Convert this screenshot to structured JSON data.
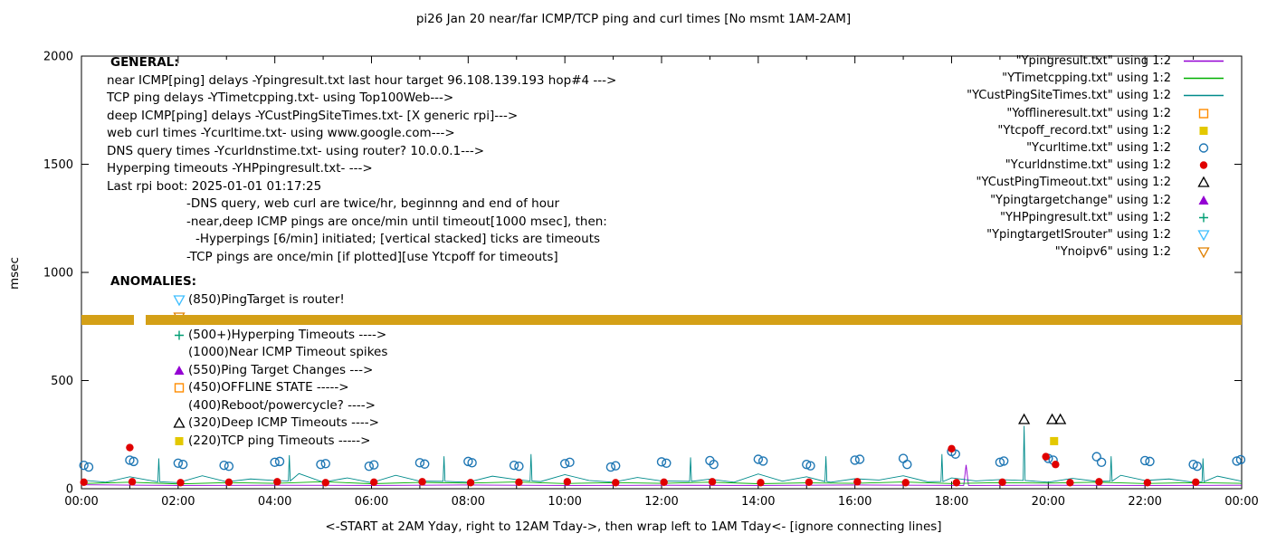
{
  "title": "pi26 Jan 20  near/far ICMP/TCP ping and curl times [No msmt 1AM-2AM]",
  "y_axis_label": "msec",
  "x_axis_label": "<-START at 2AM Yday, right to 12AM Tday->, then wrap left to 1AM Tday<- [ignore connecting lines]",
  "legend": {
    "items": [
      {
        "label": "\"Ypingresult.txt\" using 1:2",
        "marker": "line",
        "color": "#9400d3"
      },
      {
        "label": "\"YTimetcpping.txt\" using 1:2",
        "marker": "line",
        "color": "#00b000"
      },
      {
        "label": "\"YCustPingSiteTimes.txt\" using 1:2",
        "marker": "line",
        "color": "#008b8b"
      },
      {
        "label": "\"Yofflineresult.txt\" using 1:2",
        "marker": "square-open",
        "color": "#ff8c00"
      },
      {
        "label": "\"Ytcpoff_record.txt\" using 1:2",
        "marker": "square-filled",
        "color": "#e3c800"
      },
      {
        "label": "\"Ycurltime.txt\" using 1:2",
        "marker": "circle-open",
        "color": "#1f77b4"
      },
      {
        "label": "\"Ycurldnstime.txt\" using 1:2",
        "marker": "circle-filled",
        "color": "#e00000"
      },
      {
        "label": "\"YCustPingTimeout.txt\" using 1:2",
        "marker": "triangle-up-open",
        "color": "#000000"
      },
      {
        "label": "\"Ypingtargetchange\" using 1:2",
        "marker": "triangle-up-filled",
        "color": "#9400d3"
      },
      {
        "label": "\"YHPpingresult.txt\" using 1:2",
        "marker": "plus",
        "color": "#009e73"
      },
      {
        "label": "\"YpingtargetISrouter\" using 1:2",
        "marker": "triangle-down-open",
        "color": "#3fbfff"
      },
      {
        "label": "\"Ynoipv6\" using 1:2",
        "marker": "triangle-down-open",
        "color": "#e08000"
      }
    ]
  },
  "annotations": {
    "general_heading": "GENERAL:",
    "general_lines": [
      {
        "text": "near ICMP[ping] delays -Ypingresult.txt last hour target 96.108.139.193 hop#4 --->"
      },
      {
        "text": "TCP ping delays -YTimetcpping.txt- using Top100Web--->"
      },
      {
        "text": "deep ICMP[ping] delays -YCustPingSiteTimes.txt- [X generic rpi]--->"
      },
      {
        "text": "web curl times -Ycurltime.txt- using www.google.com--->"
      },
      {
        "text": "DNS query times -Ycurldnstime.txt- using router? 10.0.0.1--->"
      },
      {
        "text": "Hyperping timeouts -YHPpingresult.txt- --->"
      },
      {
        "text": "Last rpi boot: 2025-01-01 01:17:25"
      },
      {
        "text": "-DNS query, web curl are twice/hr, beginnng and end of hour"
      },
      {
        "text": "-near,deep ICMP pings are once/min until timeout[1000 msec], then:"
      },
      {
        "text": "-Hyperpings [6/min] initiated; [vertical stacked] ticks are timeouts"
      },
      {
        "text": "-TCP pings are once/min [if plotted][use Ytcpoff for timeouts]"
      }
    ],
    "anomalies_heading": "ANOMALIES:",
    "anomaly_lines": [
      {
        "marker": "triangle-down-open",
        "color": "#3fbfff",
        "text": "(850)PingTarget is router!"
      },
      {
        "marker": "triangle-down-open",
        "color": "#e08000",
        "text": ""
      },
      {
        "marker": "plus",
        "color": "#009e73",
        "text": "(500+)Hyperping Timeouts ---->"
      },
      {
        "marker": "none",
        "color": "",
        "text": "(1000)Near ICMP Timeout spikes"
      },
      {
        "marker": "triangle-up-filled",
        "color": "#9400d3",
        "text": "(550)Ping Target Changes --->"
      },
      {
        "marker": "square-open",
        "color": "#ff8c00",
        "text": "(450)OFFLINE STATE ----->"
      },
      {
        "marker": "none",
        "color": "",
        "text": "(400)Reboot/powercycle? ---->"
      },
      {
        "marker": "triangle-up-open",
        "color": "#000000",
        "text": "(320)Deep ICMP Timeouts ---->"
      },
      {
        "marker": "square-filled",
        "color": "#e3c800",
        "text": "(220)TCP ping Timeouts ----->"
      }
    ]
  },
  "chart_data": {
    "type": "scatter",
    "title": "pi26 Jan 20  near/far ICMP/TCP ping and curl times [No msmt 1AM-2AM]",
    "xlabel": "<-START at 2AM Yday, right to 12AM Tday->, then wrap left to 1AM Tday<- [ignore connecting lines]",
    "ylabel": "msec",
    "xlim": [
      0,
      24
    ],
    "ylim": [
      0,
      2000
    ],
    "x_tick_labels": [
      "00:00",
      "02:00",
      "04:00",
      "06:00",
      "08:00",
      "10:00",
      "12:00",
      "14:00",
      "16:00",
      "18:00",
      "20:00",
      "22:00",
      "00:00"
    ],
    "y_ticks": [
      0,
      500,
      1000,
      1500,
      2000
    ],
    "grid": false,
    "legend_position": "top-right",
    "band": {
      "name": "Ynoipv6 dense markers band",
      "y_range": [
        758,
        802
      ],
      "x_segments": [
        [
          0,
          1.08
        ],
        [
          1.33,
          24
        ]
      ],
      "color": "#d4a017"
    },
    "series": [
      {
        "name": "Ypingresult.txt (near ICMP ping)",
        "type": "line",
        "color": "#9400d3",
        "points": [
          [
            0,
            18
          ],
          [
            2,
            15
          ],
          [
            4,
            16
          ],
          [
            6,
            15
          ],
          [
            8,
            17
          ],
          [
            10,
            15
          ],
          [
            12,
            16
          ],
          [
            14,
            15
          ],
          [
            16,
            17
          ],
          [
            18.25,
            15
          ],
          [
            18.3,
            110
          ],
          [
            18.35,
            15
          ],
          [
            20,
            16
          ],
          [
            22,
            15
          ],
          [
            24,
            16
          ]
        ]
      },
      {
        "name": "YTimetcpping.txt (TCP ping)",
        "type": "line",
        "color": "#00b000",
        "points": [
          [
            0,
            24
          ],
          [
            1,
            30
          ],
          [
            2,
            22
          ],
          [
            3,
            28
          ],
          [
            4,
            25
          ],
          [
            5,
            32
          ],
          [
            6,
            23
          ],
          [
            7,
            29
          ],
          [
            8,
            26
          ],
          [
            9,
            31
          ],
          [
            10,
            24
          ],
          [
            11,
            28
          ],
          [
            12,
            25
          ],
          [
            13,
            30
          ],
          [
            14,
            23
          ],
          [
            15,
            27
          ],
          [
            16,
            25
          ],
          [
            17,
            31
          ],
          [
            18,
            24
          ],
          [
            19,
            28
          ],
          [
            20,
            26
          ],
          [
            21,
            30
          ],
          [
            22,
            24
          ],
          [
            23,
            28
          ],
          [
            24,
            25
          ]
        ]
      },
      {
        "name": "YCustPingSiteTimes.txt (deep ICMP ping)",
        "type": "line",
        "color": "#008b8b",
        "points": [
          [
            0,
            40
          ],
          [
            0.5,
            30
          ],
          [
            1,
            55
          ],
          [
            1.5,
            35
          ],
          [
            1.58,
            32
          ],
          [
            1.6,
            140
          ],
          [
            1.62,
            32
          ],
          [
            2,
            28
          ],
          [
            2.5,
            60
          ],
          [
            3,
            32
          ],
          [
            3.5,
            45
          ],
          [
            4,
            38
          ],
          [
            4.28,
            36
          ],
          [
            4.3,
            155
          ],
          [
            4.32,
            36
          ],
          [
            4.5,
            70
          ],
          [
            5,
            30
          ],
          [
            5.5,
            50
          ],
          [
            6,
            28
          ],
          [
            6.5,
            62
          ],
          [
            7,
            35
          ],
          [
            7.48,
            34
          ],
          [
            7.5,
            150
          ],
          [
            7.52,
            34
          ],
          [
            8,
            30
          ],
          [
            8.5,
            58
          ],
          [
            9,
            42
          ],
          [
            9.28,
            36
          ],
          [
            9.3,
            160
          ],
          [
            9.32,
            36
          ],
          [
            9.5,
            33
          ],
          [
            10,
            65
          ],
          [
            10.5,
            38
          ],
          [
            11,
            30
          ],
          [
            11.5,
            52
          ],
          [
            12,
            36
          ],
          [
            12.58,
            34
          ],
          [
            12.6,
            145
          ],
          [
            12.62,
            34
          ],
          [
            13,
            44
          ],
          [
            13.5,
            30
          ],
          [
            14,
            68
          ],
          [
            14.5,
            35
          ],
          [
            15,
            55
          ],
          [
            15.38,
            33
          ],
          [
            15.4,
            150
          ],
          [
            15.42,
            33
          ],
          [
            15.5,
            30
          ],
          [
            16,
            46
          ],
          [
            16.5,
            40
          ],
          [
            17,
            60
          ],
          [
            17.5,
            32
          ],
          [
            17.78,
            33
          ],
          [
            17.8,
            160
          ],
          [
            17.82,
            33
          ],
          [
            18,
            50
          ],
          [
            18.5,
            36
          ],
          [
            19,
            42
          ],
          [
            19.48,
            38
          ],
          [
            19.5,
            290
          ],
          [
            19.52,
            38
          ],
          [
            20,
            30
          ],
          [
            20.5,
            48
          ],
          [
            21,
            34
          ],
          [
            21.28,
            35
          ],
          [
            21.3,
            150
          ],
          [
            21.32,
            35
          ],
          [
            21.5,
            62
          ],
          [
            22,
            38
          ],
          [
            22.5,
            45
          ],
          [
            23,
            30
          ],
          [
            23.18,
            32
          ],
          [
            23.2,
            140
          ],
          [
            23.22,
            32
          ],
          [
            23.5,
            58
          ],
          [
            24,
            35
          ]
        ]
      },
      {
        "name": "Ycurltime.txt (web curl)",
        "type": "scatter",
        "marker": "circle-open",
        "color": "#1f77b4",
        "points": [
          [
            0.05,
            108
          ],
          [
            0.15,
            100
          ],
          [
            1.0,
            132
          ],
          [
            1.08,
            126
          ],
          [
            2.0,
            118
          ],
          [
            2.1,
            112
          ],
          [
            2.95,
            108
          ],
          [
            3.05,
            104
          ],
          [
            4.0,
            122
          ],
          [
            4.1,
            126
          ],
          [
            4.95,
            112
          ],
          [
            5.05,
            116
          ],
          [
            5.95,
            104
          ],
          [
            6.05,
            110
          ],
          [
            7.0,
            120
          ],
          [
            7.1,
            114
          ],
          [
            8.0,
            126
          ],
          [
            8.08,
            120
          ],
          [
            8.95,
            108
          ],
          [
            9.05,
            104
          ],
          [
            10.0,
            116
          ],
          [
            10.1,
            122
          ],
          [
            10.95,
            100
          ],
          [
            11.05,
            106
          ],
          [
            12.0,
            124
          ],
          [
            12.1,
            118
          ],
          [
            13.0,
            130
          ],
          [
            13.08,
            112
          ],
          [
            14.0,
            136
          ],
          [
            14.1,
            128
          ],
          [
            15.0,
            112
          ],
          [
            15.08,
            106
          ],
          [
            16.0,
            132
          ],
          [
            16.1,
            136
          ],
          [
            17.0,
            140
          ],
          [
            17.08,
            112
          ],
          [
            18.0,
            172
          ],
          [
            18.08,
            160
          ],
          [
            19.0,
            122
          ],
          [
            19.08,
            128
          ],
          [
            20.0,
            140
          ],
          [
            20.1,
            132
          ],
          [
            21.0,
            148
          ],
          [
            21.1,
            122
          ],
          [
            22.0,
            130
          ],
          [
            22.1,
            126
          ],
          [
            23.0,
            112
          ],
          [
            23.08,
            104
          ],
          [
            23.9,
            128
          ],
          [
            23.98,
            134
          ]
        ]
      },
      {
        "name": "Ycurldnstime.txt (DNS query)",
        "type": "scatter",
        "marker": "circle-filled",
        "color": "#e00000",
        "points": [
          [
            0.05,
            30
          ],
          [
            1.0,
            190
          ],
          [
            1.05,
            32
          ],
          [
            2.05,
            28
          ],
          [
            3.05,
            30
          ],
          [
            4.05,
            32
          ],
          [
            5.05,
            28
          ],
          [
            6.05,
            30
          ],
          [
            7.05,
            32
          ],
          [
            8.05,
            28
          ],
          [
            9.05,
            30
          ],
          [
            10.05,
            32
          ],
          [
            11.05,
            28
          ],
          [
            12.05,
            30
          ],
          [
            13.05,
            32
          ],
          [
            14.05,
            28
          ],
          [
            15.05,
            30
          ],
          [
            16.05,
            32
          ],
          [
            17.05,
            28
          ],
          [
            18.0,
            185
          ],
          [
            18.1,
            28
          ],
          [
            19.05,
            30
          ],
          [
            19.95,
            148
          ],
          [
            20.15,
            112
          ],
          [
            20.45,
            28
          ],
          [
            21.05,
            32
          ],
          [
            22.05,
            28
          ],
          [
            23.05,
            30
          ]
        ]
      },
      {
        "name": "YCustPingTimeout.txt (deep ICMP timeouts)",
        "type": "scatter",
        "marker": "triangle-up-open",
        "color": "#000000",
        "points": [
          [
            19.5,
            320
          ],
          [
            20.08,
            320
          ],
          [
            20.25,
            320
          ]
        ]
      },
      {
        "name": "Ytcpoff_record.txt (TCP ping timeouts)",
        "type": "scatter",
        "marker": "square-filled",
        "color": "#e3c800",
        "points": [
          [
            20.12,
            220
          ]
        ]
      }
    ]
  }
}
